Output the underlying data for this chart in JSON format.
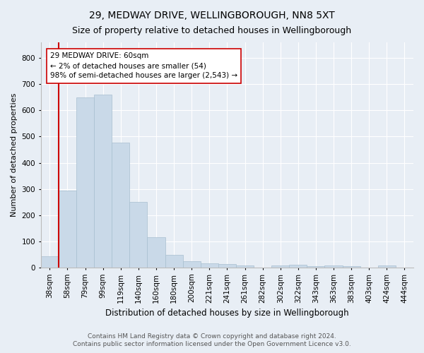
{
  "title1": "29, MEDWAY DRIVE, WELLINGBOROUGH, NN8 5XT",
  "title2": "Size of property relative to detached houses in Wellingborough",
  "xlabel": "Distribution of detached houses by size in Wellingborough",
  "ylabel": "Number of detached properties",
  "footer1": "Contains HM Land Registry data © Crown copyright and database right 2024.",
  "footer2": "Contains public sector information licensed under the Open Government Licence v3.0.",
  "bar_labels": [
    "38sqm",
    "58sqm",
    "79sqm",
    "99sqm",
    "119sqm",
    "140sqm",
    "160sqm",
    "180sqm",
    "200sqm",
    "221sqm",
    "241sqm",
    "261sqm",
    "282sqm",
    "302sqm",
    "322sqm",
    "343sqm",
    "363sqm",
    "383sqm",
    "403sqm",
    "424sqm",
    "444sqm"
  ],
  "bar_values": [
    42,
    295,
    650,
    660,
    478,
    250,
    115,
    48,
    25,
    15,
    13,
    8,
    0,
    8,
    10,
    5,
    8,
    5,
    0,
    8,
    0
  ],
  "bar_color": "#c9d9e8",
  "bar_edge_color": "#a8bfcf",
  "annotation_line1": "29 MEDWAY DRIVE: 60sqm",
  "annotation_line2": "← 2% of detached houses are smaller (54)",
  "annotation_line3": "98% of semi-detached houses are larger (2,543) →",
  "vline_color": "#cc0000",
  "annotation_box_facecolor": "#ffffff",
  "annotation_box_edgecolor": "#cc0000",
  "bg_color": "#e8eef5",
  "plot_bg_color": "#e8eef5",
  "grid_color": "#ffffff",
  "ylim": [
    0,
    860
  ],
  "yticks": [
    0,
    100,
    200,
    300,
    400,
    500,
    600,
    700,
    800
  ],
  "title1_fontsize": 10,
  "title2_fontsize": 9,
  "xlabel_fontsize": 8.5,
  "ylabel_fontsize": 8,
  "tick_fontsize": 7.5,
  "footer_fontsize": 6.5,
  "annotation_fontsize": 7.5
}
